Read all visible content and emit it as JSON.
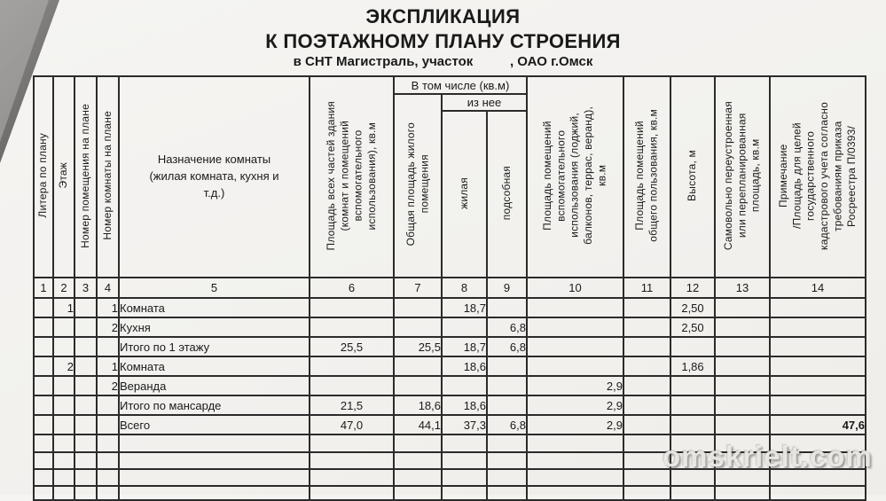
{
  "page": {
    "title1": "ЭКСПЛИКАЦИЯ",
    "title2": "К ПОЭТАЖНОМУ ПЛАНУ СТРОЕНИЯ",
    "subtitle": "в СНТ Магистраль, участок          , ОАО г.Омск",
    "watermark": "omskrielt.com"
  },
  "table": {
    "group_headers": {
      "v_tom_chisle": "В том числе (кв.м)",
      "iz_nee": "из нее"
    },
    "col_headers": {
      "c1": "Литера по плану",
      "c2": "Этаж",
      "c3": "Номер помещения на плане",
      "c4": "Номер комнаты на плане",
      "c5": "Назначение комнаты\n(жилая комната, кухня и\nт.д.)",
      "c6": "Площадь всех частей здания\n(комнат и помещений\nвспомогательного\nиспользования), кв.м",
      "c7": "Общая площадь жилого\nпомещения",
      "c8": "жилая",
      "c9": "подсобная",
      "c10": "Площадь помещений\nвспомогательного\nиспользования (лоджий,\nбалконов, террас, веранд),\nкв.м",
      "c11": "Площадь помещений\nобщего пользования, кв.м",
      "c12": "Высота, м",
      "c13": "Самовольно переустроенная\nили перепланированная\nплощадь, кв.м",
      "c14": "Примечание\n/Площадь для целей\nгосударственного\nкадастрового учета согласно\nтребованиям приказа\nРосреестра П/0393/"
    },
    "col_numbers": [
      "1",
      "2",
      "3",
      "4",
      "5",
      "6",
      "7",
      "8",
      "9",
      "10",
      "11",
      "12",
      "13",
      "14"
    ],
    "rows": [
      [
        "",
        "1",
        "",
        "1",
        "Комната",
        "",
        "",
        "18,7",
        "",
        "",
        "",
        "2,50",
        "",
        ""
      ],
      [
        "",
        "",
        "",
        "2",
        "Кухня",
        "",
        "",
        "",
        "6,8",
        "",
        "",
        "2,50",
        "",
        ""
      ],
      [
        "",
        "",
        "",
        "",
        "Итого по 1 этажу",
        "25,5",
        "25,5",
        "18,7",
        "6,8",
        "",
        "",
        "",
        "",
        ""
      ],
      [
        "",
        "2",
        "",
        "1",
        "Комната",
        "",
        "",
        "18,6",
        "",
        "",
        "",
        "1,86",
        "",
        ""
      ],
      [
        "",
        "",
        "",
        "2",
        "Веранда",
        "",
        "",
        "",
        "",
        "2,9",
        "",
        "",
        "",
        ""
      ],
      [
        "",
        "",
        "",
        "",
        "Итого по мансарде",
        "21,5",
        "18,6",
        "18,6",
        "",
        "2,9",
        "",
        "",
        "",
        ""
      ],
      [
        "",
        "",
        "",
        "",
        "Всего",
        "47,0",
        "44,1",
        "37,3",
        "6,8",
        "2,9",
        "",
        "",
        "",
        "47,6"
      ]
    ],
    "bold_cells": [
      [
        6,
        13
      ]
    ],
    "empty_rows": 4
  },
  "colors": {
    "border": "#2b2b2b",
    "page_bg": "#f2f1ee",
    "watermark_text": "#eceae7"
  }
}
